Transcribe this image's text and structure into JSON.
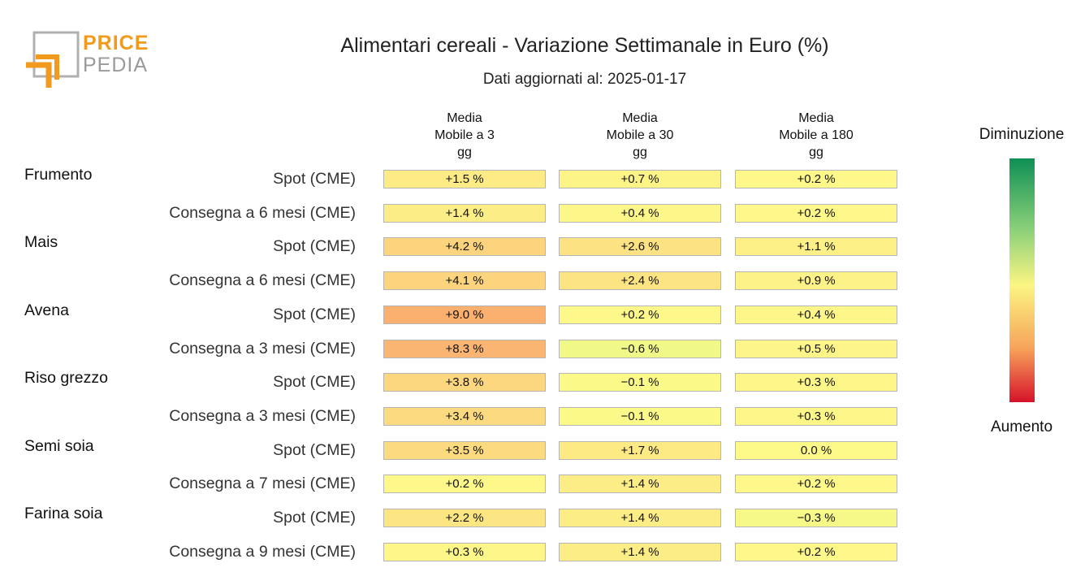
{
  "logo": {
    "line1": "PRICE",
    "line2": "PEDIA"
  },
  "title": "Alimentari cereali - Variazione Settimanale in Euro (%)",
  "subtitle": "Dati aggiornati al: 2025-01-17",
  "legend": {
    "top": "Diminuzione",
    "bottom": "Aumento"
  },
  "chart_data": {
    "type": "heatmap",
    "title": "Alimentari cereali - Variazione Settimanale in Euro (%)",
    "subtitle": "Dati aggiornati al: 2025-01-17",
    "columns": [
      "Media\nMobile a 3\ngg",
      "Media\nMobile a 30\ngg",
      "Media\nMobile a 180\ngg"
    ],
    "colorscale": {
      "low_label": "Aumento",
      "high_label": "Diminuzione",
      "colors": [
        "#d6122b",
        "#f7a35a",
        "#fbf582",
        "#8fd27a",
        "#0e9055"
      ]
    },
    "rows": [
      {
        "group": "Frumento",
        "label": "Spot (CME)",
        "values": [
          1.5,
          0.7,
          0.2
        ],
        "text": [
          "+1.5 %",
          "+0.7 %",
          "+0.2 %"
        ]
      },
      {
        "group": "",
        "label": "Consegna a 6 mesi (CME)",
        "values": [
          1.4,
          0.4,
          0.2
        ],
        "text": [
          "+1.4 %",
          "+0.4 %",
          "+0.2 %"
        ]
      },
      {
        "group": "Mais",
        "label": "Spot (CME)",
        "values": [
          4.2,
          2.6,
          1.1
        ],
        "text": [
          "+4.2 %",
          "+2.6 %",
          "+1.1 %"
        ]
      },
      {
        "group": "",
        "label": "Consegna a 6 mesi (CME)",
        "values": [
          4.1,
          2.4,
          0.9
        ],
        "text": [
          "+4.1 %",
          "+2.4 %",
          "+0.9 %"
        ]
      },
      {
        "group": "Avena",
        "label": "Spot (CME)",
        "values": [
          9.0,
          0.2,
          0.4
        ],
        "text": [
          "+9.0 %",
          "+0.2 %",
          "+0.4 %"
        ]
      },
      {
        "group": "",
        "label": "Consegna a 3 mesi (CME)",
        "values": [
          8.3,
          -0.6,
          0.5
        ],
        "text": [
          "+8.3 %",
          "−0.6 %",
          "+0.5 %"
        ]
      },
      {
        "group": "Riso grezzo",
        "label": "Spot (CME)",
        "values": [
          3.8,
          -0.1,
          0.3
        ],
        "text": [
          "+3.8 %",
          "−0.1 %",
          "+0.3 %"
        ]
      },
      {
        "group": "",
        "label": "Consegna a 3 mesi (CME)",
        "values": [
          3.4,
          -0.1,
          0.3
        ],
        "text": [
          "+3.4 %",
          "−0.1 %",
          "+0.3 %"
        ]
      },
      {
        "group": "Semi soia",
        "label": "Spot (CME)",
        "values": [
          3.5,
          1.7,
          0.0
        ],
        "text": [
          "+3.5 %",
          "+1.7 %",
          "0.0 %"
        ]
      },
      {
        "group": "",
        "label": "Consegna a 7 mesi (CME)",
        "values": [
          0.2,
          1.4,
          0.2
        ],
        "text": [
          "+0.2 %",
          "+1.4 %",
          "+0.2 %"
        ]
      },
      {
        "group": "Farina soia",
        "label": "Spot (CME)",
        "values": [
          2.2,
          1.4,
          -0.3
        ],
        "text": [
          "+2.2 %",
          "+1.4 %",
          "−0.3 %"
        ]
      },
      {
        "group": "",
        "label": "Consegna a 9 mesi (CME)",
        "values": [
          0.3,
          1.4,
          0.2
        ],
        "text": [
          "+0.3 %",
          "+1.4 %",
          "+0.2 %"
        ]
      }
    ]
  }
}
